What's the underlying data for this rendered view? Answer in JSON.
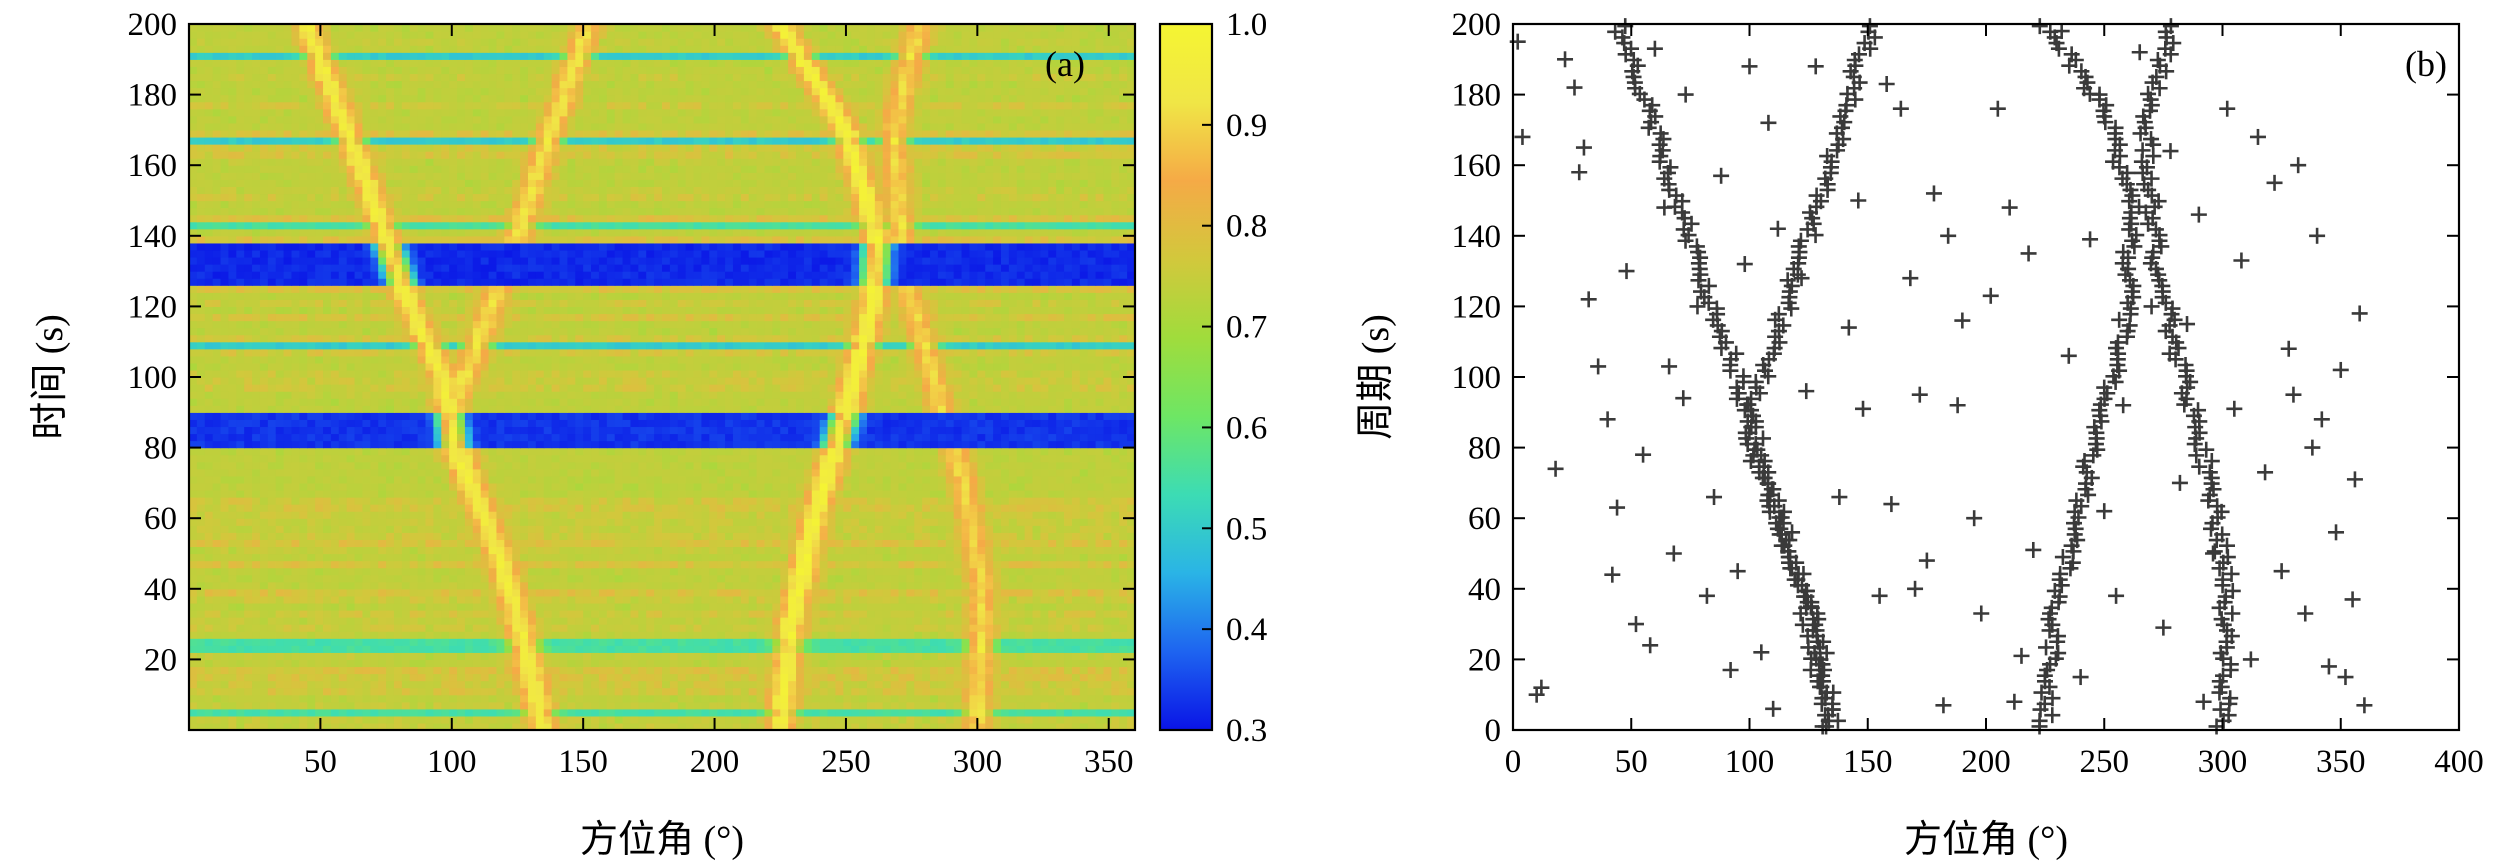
{
  "chart_data": [
    {
      "type": "heatmap",
      "panel_label": "(a)",
      "xlabel": "方位角 (°)",
      "ylabel": "时间 (s)",
      "xlim": [
        0,
        360
      ],
      "ylim": [
        0,
        200
      ],
      "xticks": [
        50,
        100,
        150,
        200,
        250,
        300,
        350
      ],
      "yticks": [
        20,
        40,
        60,
        80,
        100,
        120,
        140,
        160,
        180,
        200
      ],
      "colorbar": {
        "range": [
          0.3,
          1.0
        ],
        "ticks": [
          "0.3",
          "0.4",
          "0.5",
          "0.6",
          "0.7",
          "0.8",
          "0.9",
          "1.0"
        ],
        "colormap": [
          "#0a14e6",
          "#1e64f0",
          "#2ab4e6",
          "#3cdcb4",
          "#6ee664",
          "#a0dc3c",
          "#d2c83c",
          "#f5aa46",
          "#f0e646",
          "#f5f532"
        ]
      },
      "background_level": 0.72,
      "ridges": [
        {
          "azimuth_at_time": [
            [
              0,
              135
            ],
            [
              25,
              128
            ],
            [
              50,
              118
            ],
            [
              80,
              101
            ],
            [
              100,
              97
            ],
            [
              120,
              84
            ],
            [
              150,
              70
            ],
            [
              180,
              55
            ],
            [
              200,
              45
            ]
          ],
          "peak": 0.95
        },
        {
          "azimuth_at_time": [
            [
              0,
              134
            ],
            [
              40,
              122
            ],
            [
              70,
              108
            ],
            [
              90,
              100
            ],
            [
              110,
              110
            ],
            [
              140,
              125
            ],
            [
              170,
              138
            ],
            [
              200,
              152
            ]
          ],
          "peak": 0.92
        },
        {
          "azimuth_at_time": [
            [
              0,
              225
            ],
            [
              30,
              229
            ],
            [
              60,
              238
            ],
            [
              90,
              250
            ],
            [
              120,
              260
            ],
            [
              140,
              262
            ],
            [
              170,
              250
            ],
            [
              200,
              225
            ]
          ],
          "peak": 0.97
        },
        {
          "azimuth_at_time": [
            [
              0,
              300
            ],
            [
              40,
              302
            ],
            [
              70,
              295
            ],
            [
              100,
              283
            ],
            [
              130,
              272
            ],
            [
              170,
              268
            ],
            [
              200,
              278
            ]
          ],
          "peak": 0.9
        }
      ],
      "low_bands": [
        {
          "t_from": 80,
          "t_to": 89,
          "level": 0.33
        },
        {
          "t_from": 127,
          "t_to": 137,
          "level": 0.32
        },
        {
          "t_from": 109,
          "t_to": 110,
          "level": 0.5
        },
        {
          "t_from": 166,
          "t_to": 168,
          "level": 0.5
        },
        {
          "t_from": 143,
          "t_to": 144,
          "level": 0.55
        },
        {
          "t_from": 190,
          "t_to": 192,
          "level": 0.5
        },
        {
          "t_from": 23,
          "t_to": 25,
          "level": 0.55
        },
        {
          "t_from": 5,
          "t_to": 6,
          "level": 0.55
        }
      ]
    },
    {
      "type": "scatter",
      "panel_label": "(b)",
      "marker": "+",
      "color": "#3a3a3a",
      "xlabel": "方位角 (°)",
      "ylabel": "周期 (s)",
      "xlim": [
        0,
        400
      ],
      "ylim": [
        0,
        200
      ],
      "xticks": [
        0,
        50,
        100,
        150,
        200,
        250,
        300,
        350,
        400
      ],
      "yticks": [
        0,
        20,
        40,
        60,
        80,
        100,
        120,
        140,
        160,
        180,
        200
      ],
      "tracks": [
        {
          "azimuth_at_period": [
            [
              0,
              135
            ],
            [
              25,
              130
            ],
            [
              50,
              118
            ],
            [
              80,
              101
            ],
            [
              100,
              96
            ],
            [
              120,
              84
            ],
            [
              150,
              70
            ],
            [
              180,
              55
            ],
            [
              200,
              45
            ]
          ],
          "spread": 3
        },
        {
          "azimuth_at_period": [
            [
              0,
              134
            ],
            [
              40,
              122
            ],
            [
              70,
              108
            ],
            [
              90,
              100
            ],
            [
              110,
              110
            ],
            [
              140,
              125
            ],
            [
              170,
              138
            ],
            [
              200,
              152
            ]
          ],
          "spread": 3
        },
        {
          "azimuth_at_period": [
            [
              0,
              225
            ],
            [
              30,
              229
            ],
            [
              60,
              238
            ],
            [
              90,
              250
            ],
            [
              120,
              260
            ],
            [
              150,
              262
            ],
            [
              175,
              250
            ],
            [
              200,
              225
            ]
          ],
          "spread": 3
        },
        {
          "azimuth_at_period": [
            [
              0,
              300
            ],
            [
              40,
              302
            ],
            [
              70,
              295
            ],
            [
              100,
              283
            ],
            [
              130,
              272
            ],
            [
              170,
              268
            ],
            [
              200,
              278
            ]
          ],
          "spread": 3
        }
      ],
      "scattered_points": [
        [
          2,
          195
        ],
        [
          4,
          168
        ],
        [
          10,
          10
        ],
        [
          12,
          12
        ],
        [
          18,
          74
        ],
        [
          22,
          190
        ],
        [
          26,
          182
        ],
        [
          28,
          158
        ],
        [
          30,
          165
        ],
        [
          32,
          122
        ],
        [
          36,
          103
        ],
        [
          40,
          88
        ],
        [
          42,
          44
        ],
        [
          44,
          63
        ],
        [
          48,
          130
        ],
        [
          52,
          30
        ],
        [
          55,
          78
        ],
        [
          58,
          24
        ],
        [
          60,
          193
        ],
        [
          64,
          148
        ],
        [
          66,
          103
        ],
        [
          68,
          50
        ],
        [
          72,
          94
        ],
        [
          73,
          180
        ],
        [
          78,
          120
        ],
        [
          82,
          38
        ],
        [
          85,
          66
        ],
        [
          88,
          157
        ],
        [
          92,
          17
        ],
        [
          95,
          45
        ],
        [
          98,
          132
        ],
        [
          100,
          188
        ],
        [
          105,
          22
        ],
        [
          108,
          172
        ],
        [
          110,
          6
        ],
        [
          112,
          142
        ],
        [
          118,
          56
        ],
        [
          122,
          128
        ],
        [
          124,
          96
        ],
        [
          126,
          35
        ],
        [
          128,
          188
        ],
        [
          130,
          20
        ],
        [
          138,
          66
        ],
        [
          142,
          114
        ],
        [
          146,
          150
        ],
        [
          148,
          91
        ],
        [
          155,
          38
        ],
        [
          158,
          183
        ],
        [
          160,
          64
        ],
        [
          164,
          176
        ],
        [
          168,
          128
        ],
        [
          170,
          40
        ],
        [
          172,
          95
        ],
        [
          175,
          48
        ],
        [
          178,
          152
        ],
        [
          182,
          7
        ],
        [
          184,
          140
        ],
        [
          188,
          92
        ],
        [
          190,
          116
        ],
        [
          195,
          60
        ],
        [
          198,
          33
        ],
        [
          202,
          123
        ],
        [
          205,
          176
        ],
        [
          210,
          148
        ],
        [
          212,
          8
        ],
        [
          215,
          21
        ],
        [
          218,
          135
        ],
        [
          220,
          51
        ],
        [
          232,
          198
        ],
        [
          235,
          106
        ],
        [
          240,
          15
        ],
        [
          244,
          139
        ],
        [
          248,
          180
        ],
        [
          250,
          62
        ],
        [
          255,
          38
        ],
        [
          258,
          92
        ],
        [
          265,
          192
        ],
        [
          270,
          120
        ],
        [
          275,
          29
        ],
        [
          278,
          164
        ],
        [
          282,
          70
        ],
        [
          285,
          115
        ],
        [
          290,
          146
        ],
        [
          292,
          8
        ],
        [
          296,
          50
        ],
        [
          302,
          176
        ],
        [
          305,
          91
        ],
        [
          308,
          133
        ],
        [
          312,
          20
        ],
        [
          315,
          168
        ],
        [
          318,
          73
        ],
        [
          322,
          155
        ],
        [
          325,
          45
        ],
        [
          328,
          108
        ],
        [
          330,
          95
        ],
        [
          332,
          160
        ],
        [
          335,
          33
        ],
        [
          338,
          80
        ],
        [
          340,
          140
        ],
        [
          342,
          88
        ],
        [
          345,
          18
        ],
        [
          348,
          56
        ],
        [
          350,
          102
        ],
        [
          352,
          15
        ],
        [
          355,
          37
        ],
        [
          356,
          71
        ],
        [
          358,
          118
        ],
        [
          360,
          7
        ]
      ]
    }
  ]
}
